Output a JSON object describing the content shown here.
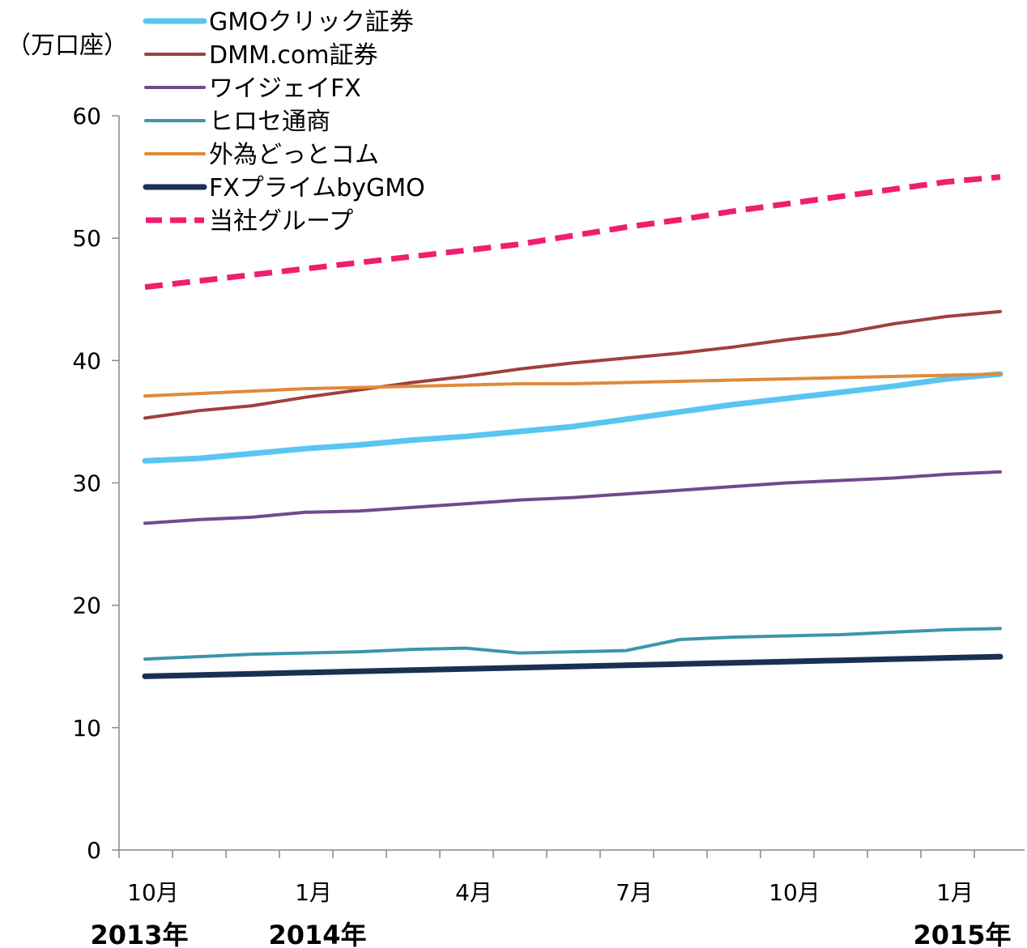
{
  "chart_data": {
    "type": "line",
    "unit_label": "（万口座）",
    "x": [
      "2013-10",
      "2013-11",
      "2013-12",
      "2014-01",
      "2014-02",
      "2014-03",
      "2014-04",
      "2014-05",
      "2014-06",
      "2014-07",
      "2014-08",
      "2014-09",
      "2014-10",
      "2014-11",
      "2014-12",
      "2015-01",
      "2015-02"
    ],
    "x_tick_labels": [
      "10月",
      "1月",
      "4月",
      "7月",
      "10月",
      "1月"
    ],
    "year_labels": [
      "2013年",
      "2014年",
      "2015年"
    ],
    "ylim": [
      0,
      60
    ],
    "y_ticks": [
      "0",
      "10",
      "20",
      "30",
      "40",
      "50",
      "60"
    ],
    "grid": false,
    "legend_position": "top-left",
    "series": [
      {
        "name": "GMOクリック証券",
        "color": "#5BC5F2",
        "style": "solid",
        "width": 7,
        "values": [
          31.8,
          32.0,
          32.4,
          32.8,
          33.1,
          33.5,
          33.8,
          34.2,
          34.6,
          35.2,
          35.8,
          36.4,
          36.9,
          37.4,
          37.9,
          38.5,
          38.9
        ]
      },
      {
        "name": "DMM.com証券",
        "color": "#A0403D",
        "style": "solid",
        "width": 4,
        "values": [
          35.3,
          35.9,
          36.3,
          37.0,
          37.6,
          38.2,
          38.7,
          39.3,
          39.8,
          40.2,
          40.6,
          41.1,
          41.7,
          42.2,
          43.0,
          43.6,
          44.0
        ]
      },
      {
        "name": "ワイジェイFX",
        "color": "#6F4B8D",
        "style": "solid",
        "width": 4,
        "values": [
          26.7,
          27.0,
          27.2,
          27.6,
          27.7,
          28.0,
          28.3,
          28.6,
          28.8,
          29.1,
          29.4,
          29.7,
          30.0,
          30.2,
          30.4,
          30.7,
          30.9
        ]
      },
      {
        "name": "ヒロセ通商",
        "color": "#3C95AB",
        "style": "solid",
        "width": 4,
        "values": [
          15.6,
          15.8,
          16.0,
          16.1,
          16.2,
          16.4,
          16.5,
          16.1,
          16.2,
          16.3,
          17.2,
          17.4,
          17.5,
          17.6,
          17.8,
          18.0,
          18.1
        ]
      },
      {
        "name": "外為どっとコム",
        "color": "#E08A3A",
        "style": "solid",
        "width": 4,
        "values": [
          37.1,
          37.3,
          37.5,
          37.7,
          37.8,
          37.9,
          38.0,
          38.1,
          38.1,
          38.2,
          38.3,
          38.4,
          38.5,
          38.6,
          38.7,
          38.8,
          38.9
        ]
      },
      {
        "name": "FXプライムbyGMO",
        "color": "#1A3052",
        "style": "solid",
        "width": 7,
        "values": [
          14.2,
          14.3,
          14.4,
          14.5,
          14.6,
          14.7,
          14.8,
          14.9,
          15.0,
          15.1,
          15.2,
          15.3,
          15.4,
          15.5,
          15.6,
          15.7,
          15.8
        ]
      },
      {
        "name": "当社グループ",
        "color": "#F01E6E",
        "style": "dashed",
        "width": 7,
        "values": [
          46.0,
          46.5,
          47.0,
          47.5,
          48.0,
          48.5,
          49.0,
          49.5,
          50.2,
          50.9,
          51.5,
          52.2,
          52.8,
          53.4,
          54.0,
          54.6,
          55.0
        ]
      }
    ]
  }
}
